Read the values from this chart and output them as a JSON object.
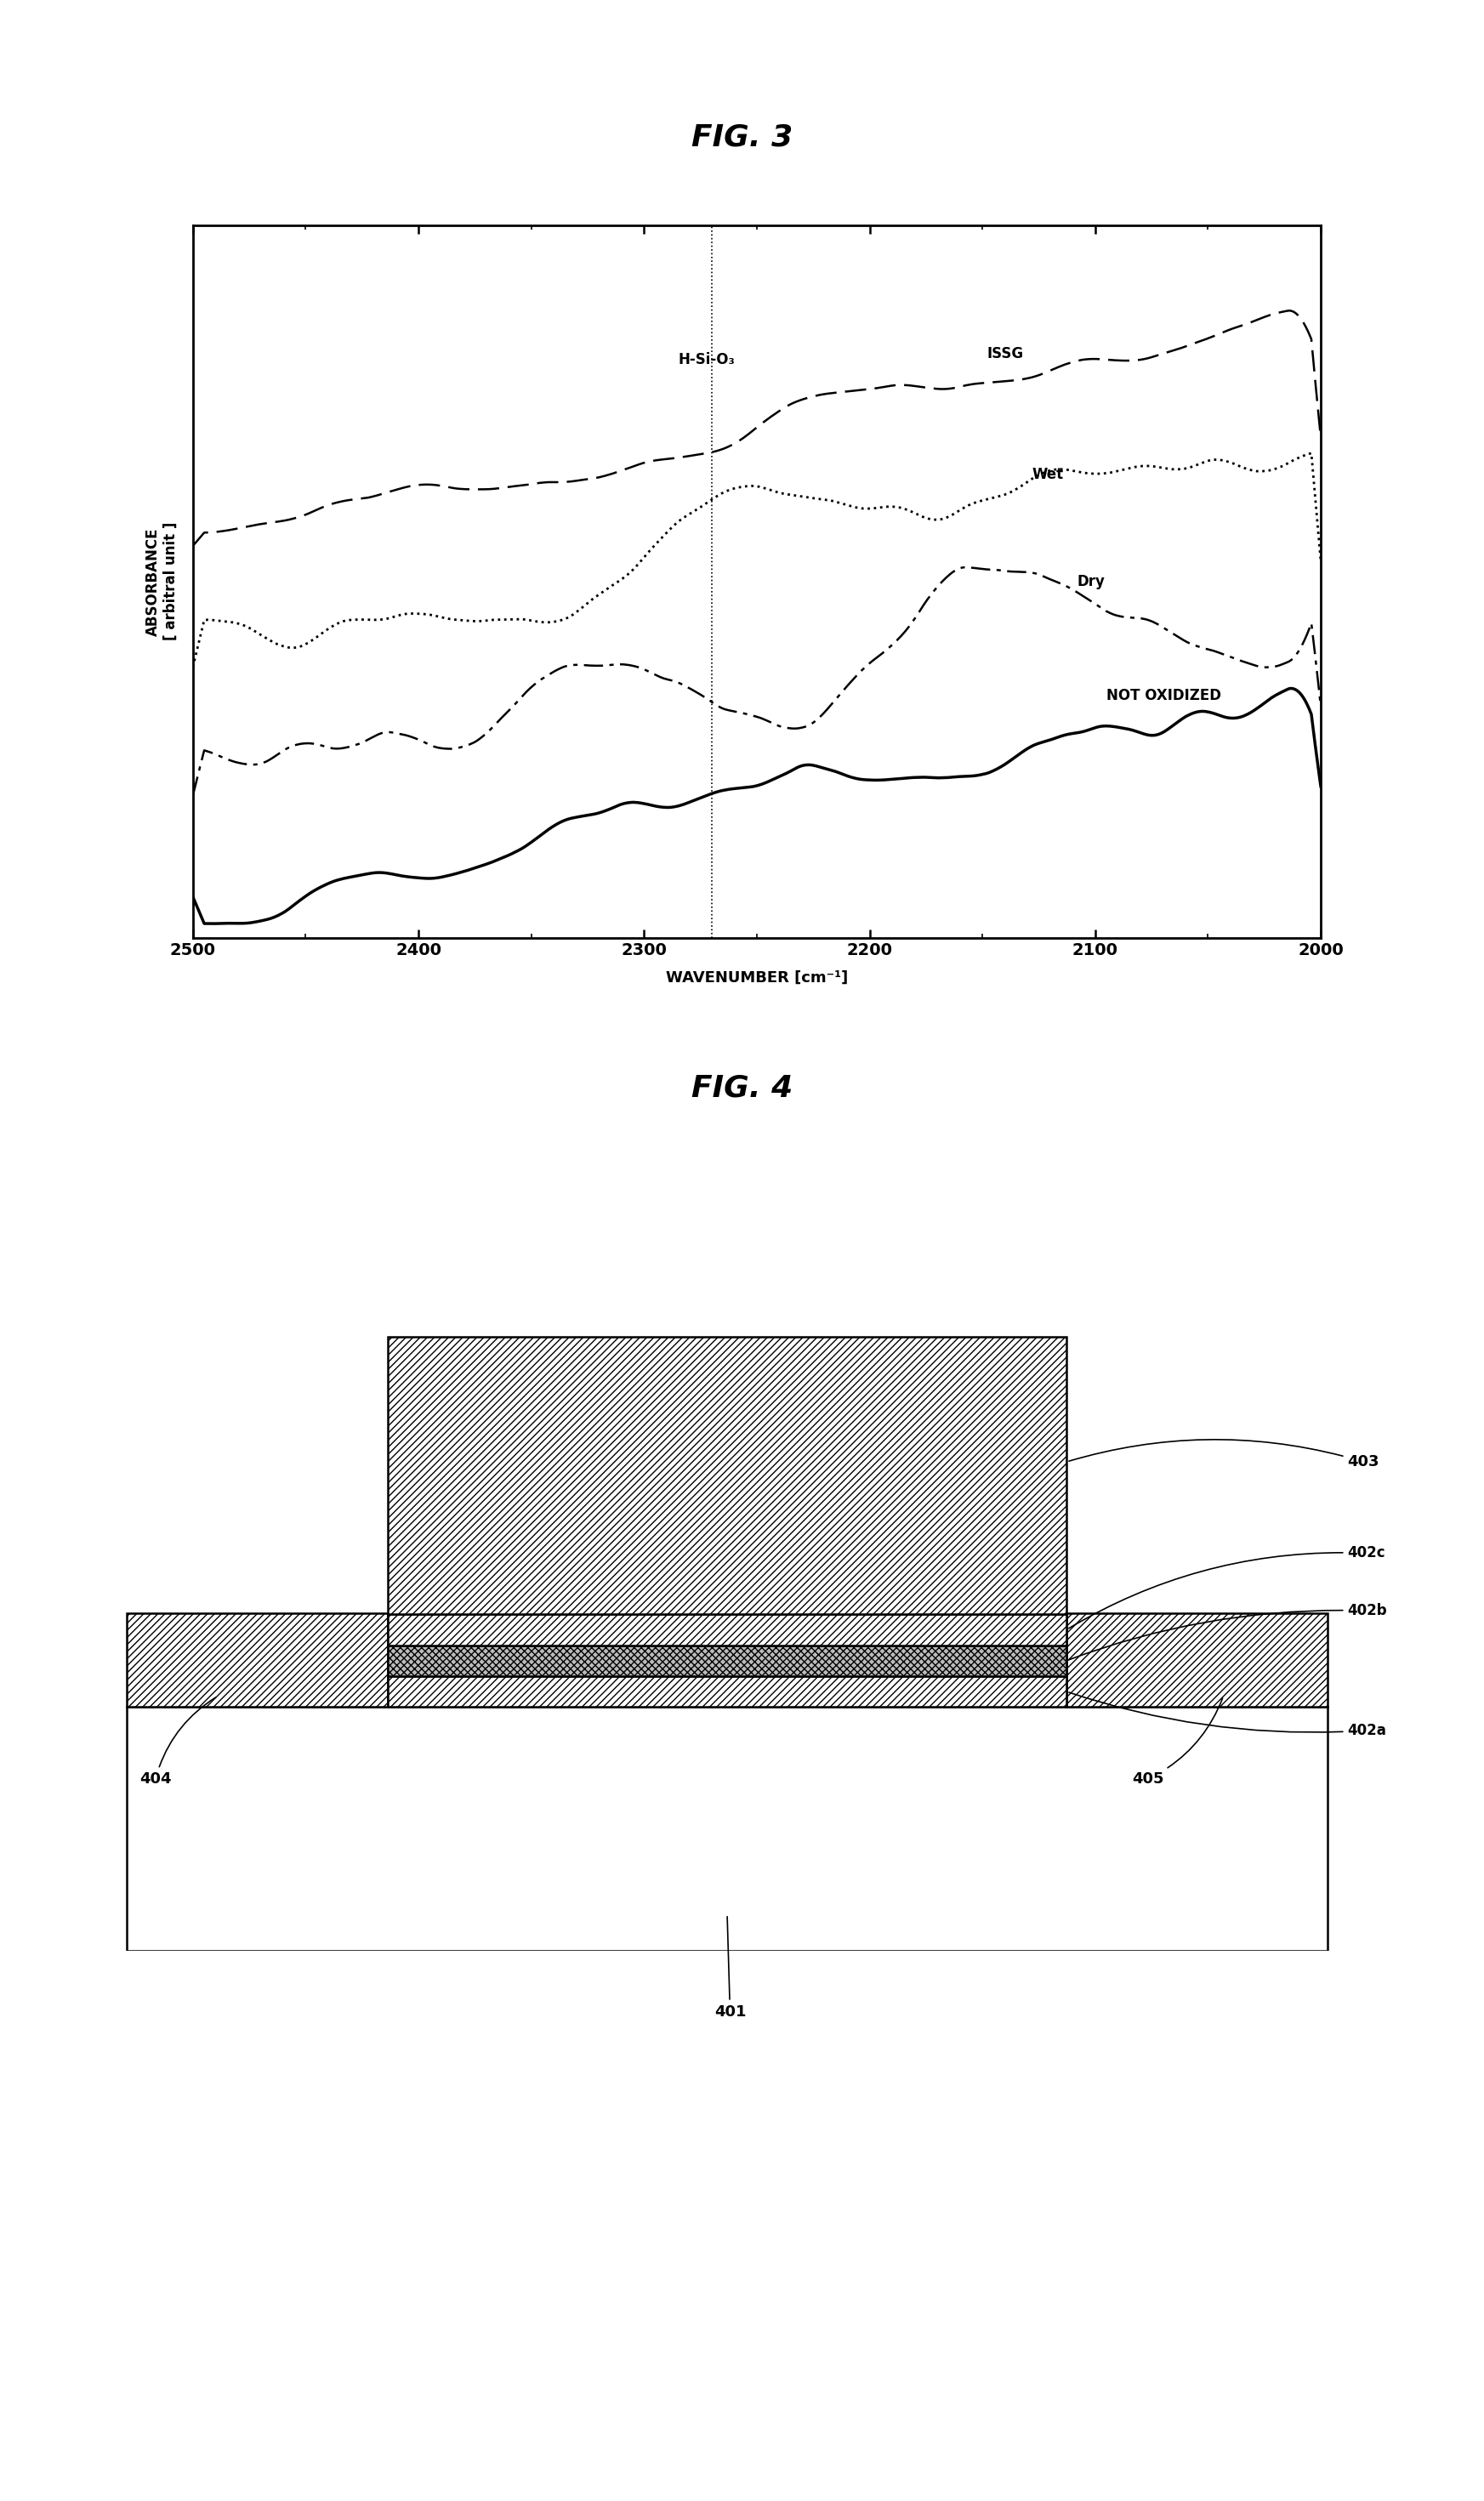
{
  "fig3_title": "FIG. 3",
  "fig4_title": "FIG. 4",
  "xlabel": "WAVENUMBER [cm⁻¹]",
  "ylabel": "ABSORBANCE\n[ arbitral unit ]",
  "xmin": 2000,
  "xmax": 2500,
  "vline_x": 2270,
  "hSiO3_label": "H-Si-O₃",
  "ISSG_label": "ISSG",
  "Wet_label": "Wet",
  "Dry_label": "Dry",
  "NOT_OXIDIZED_label": "NOT OXIDIZED",
  "background_color": "#ffffff",
  "line_color": "#000000",
  "xticks": [
    2500,
    2400,
    2300,
    2200,
    2100,
    2000
  ]
}
